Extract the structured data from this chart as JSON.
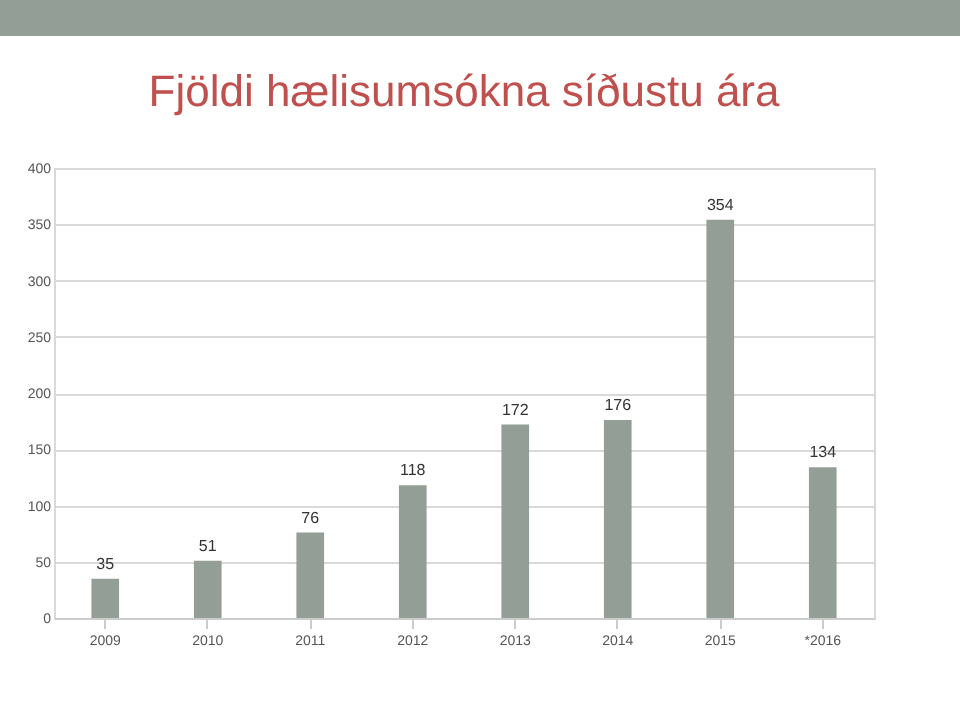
{
  "chart_data": {
    "type": "bar",
    "title": "Fjöldi hælisumsókna síðustu ára",
    "categories": [
      "2009",
      "2010",
      "2011",
      "2012",
      "2013",
      "2014",
      "2015",
      "*2016"
    ],
    "values": [
      35,
      51,
      76,
      118,
      172,
      176,
      354,
      134
    ],
    "color": "#939e96",
    "ylim": [
      0,
      400
    ],
    "yticks": [
      0,
      50,
      100,
      150,
      200,
      250,
      300,
      350,
      400
    ],
    "grid": "y",
    "data_labels": true
  }
}
